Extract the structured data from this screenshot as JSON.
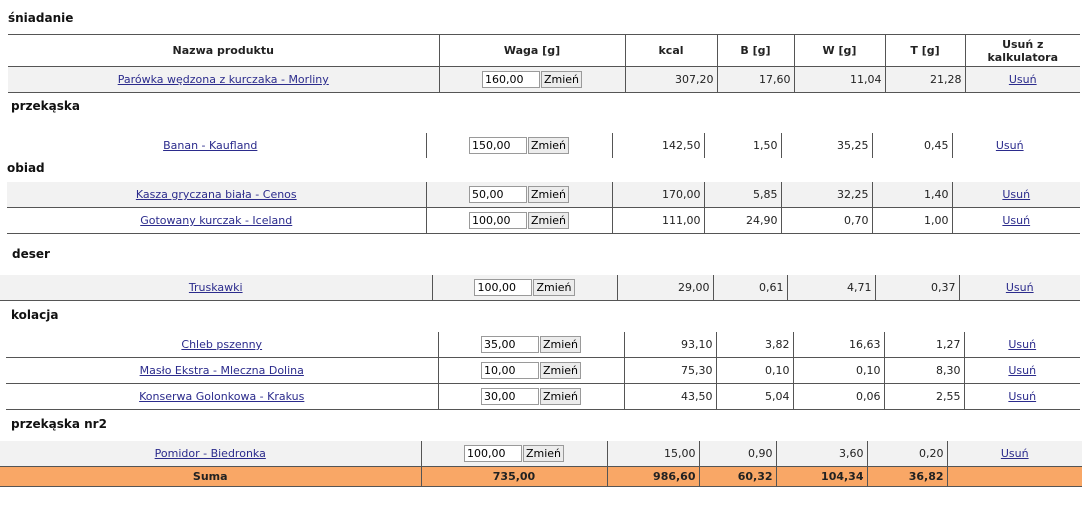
{
  "headers": {
    "name": "Nazwa produktu",
    "weight": "Waga [g]",
    "kcal": "kcal",
    "b": "B [g]",
    "w": "W [g]",
    "t": "T [g]",
    "remove": "Usuń z kalkulatora"
  },
  "change_label": "Zmień",
  "remove_label": "Usuń",
  "sections": [
    {
      "title": "śniadanie",
      "rows": [
        {
          "name": "Parówka wędzona z kurczaka - Morliny",
          "weight": "160,00",
          "kcal": "307,20",
          "b": "17,60",
          "w": "11,04",
          "t": "21,28"
        }
      ]
    },
    {
      "title": "przekąska",
      "rows": [
        {
          "name": "Banan - Kaufland",
          "weight": "150,00",
          "kcal": "142,50",
          "b": "1,50",
          "w": "35,25",
          "t": "0,45"
        }
      ]
    },
    {
      "title": "obiad",
      "rows": [
        {
          "name": "Kasza gryczana biała - Cenos",
          "weight": "50,00",
          "kcal": "170,00",
          "b": "5,85",
          "w": "32,25",
          "t": "1,40"
        },
        {
          "name": "Gotowany kurczak - Iceland",
          "weight": "100,00",
          "kcal": "111,00",
          "b": "24,90",
          "w": "0,70",
          "t": "1,00"
        }
      ]
    },
    {
      "title": "deser",
      "rows": [
        {
          "name": "Truskawki",
          "weight": "100,00",
          "kcal": "29,00",
          "b": "0,61",
          "w": "4,71",
          "t": "0,37"
        }
      ]
    },
    {
      "title": "kolacja",
      "rows": [
        {
          "name": "Chleb pszenny",
          "weight": "35,00",
          "kcal": "93,10",
          "b": "3,82",
          "w": "16,63",
          "t": "1,27"
        },
        {
          "name": "Masło Ekstra - Mleczna Dolina",
          "weight": "10,00",
          "kcal": "75,30",
          "b": "0,10",
          "w": "0,10",
          "t": "8,30"
        },
        {
          "name": "Konserwa Golonkowa - Krakus",
          "weight": "30,00",
          "kcal": "43,50",
          "b": "5,04",
          "w": "0,06",
          "t": "2,55"
        }
      ]
    },
    {
      "title": "przekąska nr2",
      "rows": [
        {
          "name": "Pomidor - Biedronka",
          "weight": "100,00",
          "kcal": "15,00",
          "b": "0,90",
          "w": "3,60",
          "t": "0,20"
        }
      ]
    }
  ],
  "summary": {
    "label": "Suma",
    "weight": "735,00",
    "kcal": "986,60",
    "b": "60,32",
    "w": "104,34",
    "t": "36,82"
  }
}
